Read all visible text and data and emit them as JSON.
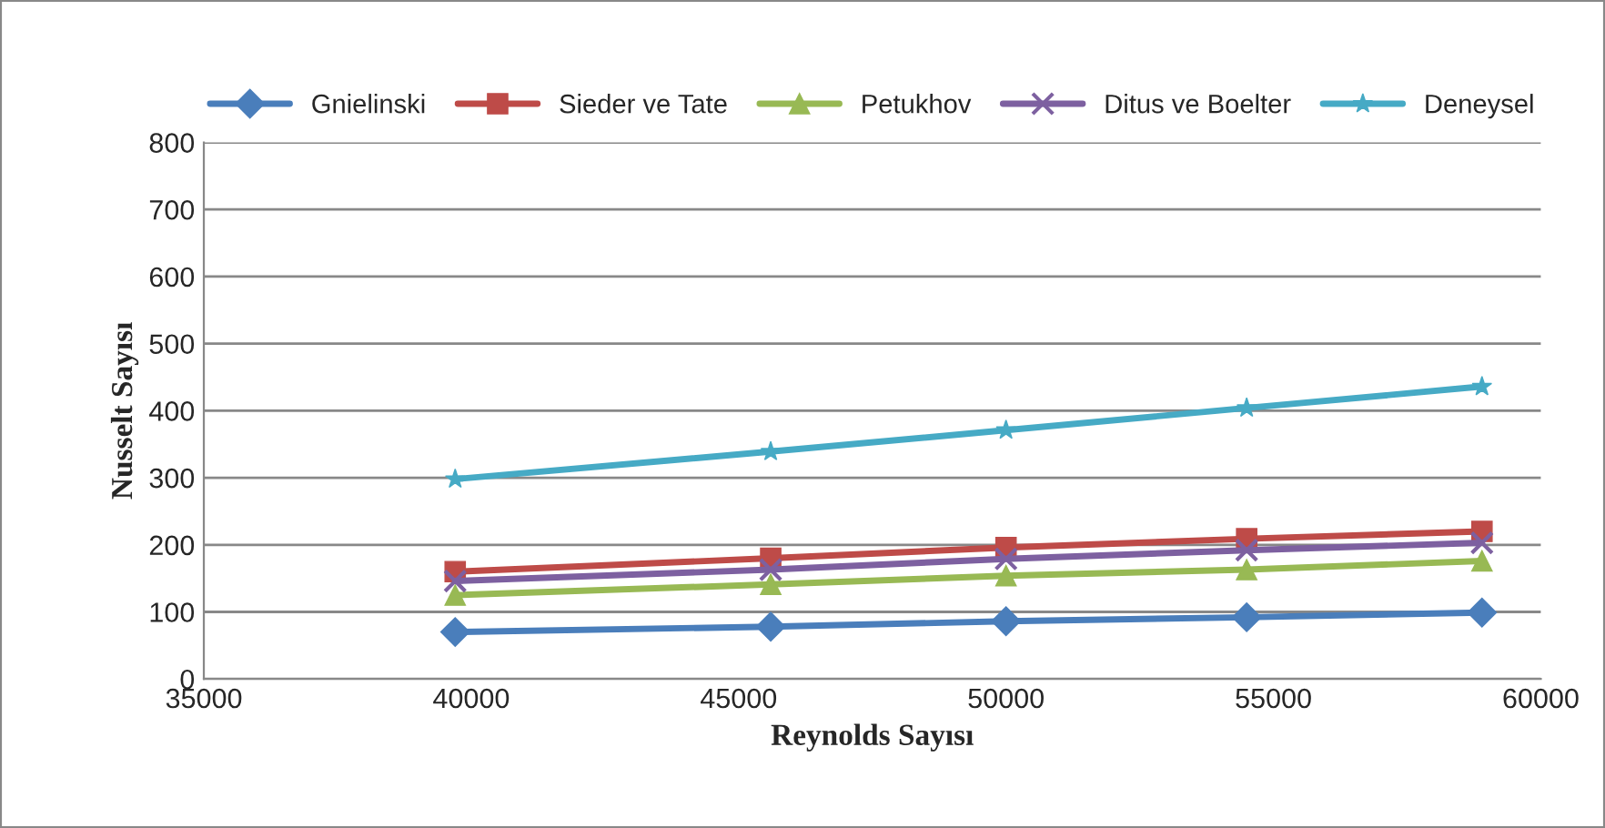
{
  "chart_data": {
    "type": "line",
    "xlabel": "Reynolds Sayısı",
    "ylabel": "Nusselt Sayısı",
    "x": [
      39700,
      45600,
      50000,
      54500,
      58900
    ],
    "series": [
      {
        "name": "Gnielinski",
        "color": "#4a7ebb",
        "marker": "diamond",
        "values": [
          70,
          78,
          86,
          92,
          99
        ]
      },
      {
        "name": "Sieder ve Tate",
        "color": "#be4b48",
        "marker": "square",
        "values": [
          160,
          180,
          196,
          209,
          220
        ]
      },
      {
        "name": "Petukhov",
        "color": "#98b954",
        "marker": "triangle",
        "values": [
          125,
          141,
          154,
          163,
          176
        ]
      },
      {
        "name": "Ditus ve Boelter",
        "color": "#7d60a0",
        "marker": "cross",
        "values": [
          146,
          163,
          179,
          192,
          203
        ]
      },
      {
        "name": "Deneysel",
        "color": "#46aac5",
        "marker": "star",
        "values": [
          298,
          339,
          371,
          404,
          436
        ]
      }
    ],
    "xlim": [
      35000,
      60000
    ],
    "xticks": [
      35000,
      40000,
      45000,
      50000,
      55000,
      60000
    ],
    "ylim": [
      0,
      800
    ],
    "yticks": [
      0,
      100,
      200,
      300,
      400,
      500,
      600,
      700,
      800
    ],
    "grid": "y",
    "legend": "top"
  }
}
